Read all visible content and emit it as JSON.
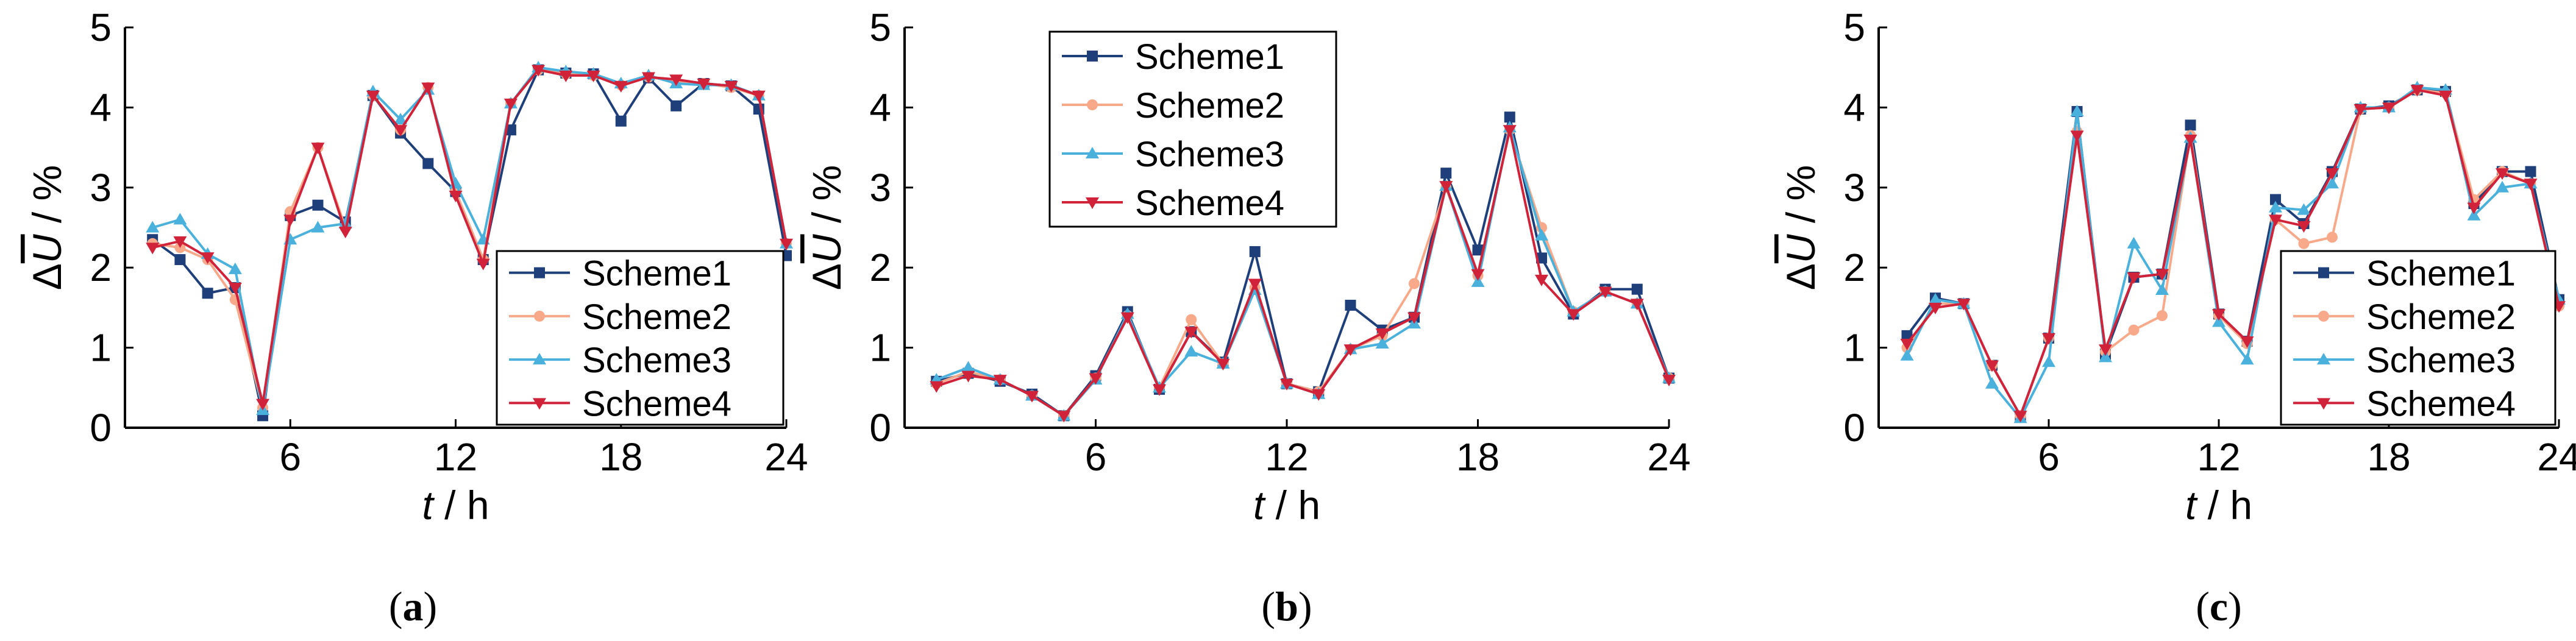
{
  "chart_data": [
    {
      "type": "line",
      "panel_label": "a",
      "xlabel_var": "t",
      "xlabel_unit": " / h",
      "ylabel_var": "U",
      "ylabel_prefix": "Δ",
      "ylabel_unit": " / %",
      "xlim": [
        0,
        24
      ],
      "ylim": [
        0,
        5
      ],
      "xticks": [
        6,
        12,
        18,
        24
      ],
      "yticks": [
        0,
        1,
        2,
        3,
        4,
        5
      ],
      "legend_position": "bottom-right",
      "x": [
        1,
        2,
        3,
        4,
        5,
        6,
        7,
        8,
        9,
        10,
        11,
        12,
        13,
        14,
        15,
        16,
        17,
        18,
        19,
        20,
        21,
        22,
        23,
        24
      ],
      "series": [
        {
          "name": "Scheme1",
          "color": "#1f3f7a",
          "marker": "square",
          "values": [
            2.35,
            2.1,
            1.68,
            1.75,
            0.15,
            2.65,
            2.78,
            2.57,
            4.15,
            3.68,
            3.3,
            2.95,
            2.1,
            3.72,
            4.47,
            4.43,
            4.42,
            3.83,
            4.37,
            4.02,
            4.3,
            4.27,
            3.98,
            2.15
          ]
        },
        {
          "name": "Scheme2",
          "color": "#f7a98a",
          "marker": "circle",
          "values": [
            2.3,
            2.25,
            2.1,
            1.6,
            0.25,
            2.7,
            3.5,
            2.5,
            4.15,
            3.72,
            4.25,
            2.95,
            2.1,
            4.05,
            4.47,
            4.42,
            4.4,
            4.28,
            4.38,
            4.33,
            4.3,
            4.25,
            4.15,
            2.3
          ]
        },
        {
          "name": "Scheme3",
          "color": "#4ab0dc",
          "marker": "triangle-up",
          "values": [
            2.5,
            2.6,
            2.17,
            1.98,
            0.22,
            2.35,
            2.5,
            2.55,
            4.2,
            3.85,
            4.22,
            3.05,
            2.35,
            4.05,
            4.5,
            4.45,
            4.42,
            4.3,
            4.4,
            4.3,
            4.28,
            4.28,
            4.15,
            2.3
          ]
        },
        {
          "name": "Scheme4",
          "color": "#d0233a",
          "marker": "triangle-down",
          "values": [
            2.25,
            2.33,
            2.13,
            1.75,
            0.3,
            2.6,
            3.5,
            2.45,
            4.15,
            3.72,
            4.25,
            2.9,
            2.05,
            4.05,
            4.47,
            4.4,
            4.4,
            4.27,
            4.38,
            4.35,
            4.3,
            4.27,
            4.15,
            2.3
          ]
        }
      ]
    },
    {
      "type": "line",
      "panel_label": "b",
      "xlabel_var": "t",
      "xlabel_unit": " / h",
      "ylabel_var": "U",
      "ylabel_prefix": "Δ",
      "ylabel_unit": " / %",
      "xlim": [
        0,
        24
      ],
      "ylim": [
        0,
        5
      ],
      "xticks": [
        6,
        12,
        18,
        24
      ],
      "yticks": [
        0,
        1,
        2,
        3,
        4,
        5
      ],
      "legend_position": "top-left",
      "x": [
        1,
        2,
        3,
        4,
        5,
        6,
        7,
        8,
        9,
        10,
        11,
        12,
        13,
        14,
        15,
        16,
        17,
        18,
        19,
        20,
        21,
        22,
        23,
        24
      ],
      "series": [
        {
          "name": "Scheme1",
          "color": "#1f3f7a",
          "marker": "square",
          "values": [
            0.58,
            0.68,
            0.58,
            0.42,
            0.15,
            0.65,
            1.45,
            0.48,
            1.2,
            0.82,
            2.2,
            0.55,
            0.45,
            1.53,
            1.22,
            1.38,
            3.18,
            2.22,
            3.88,
            2.12,
            1.42,
            1.73,
            1.73,
            0.62
          ]
        },
        {
          "name": "Scheme2",
          "color": "#f7a98a",
          "marker": "circle",
          "values": [
            0.55,
            0.7,
            0.6,
            0.4,
            0.15,
            0.62,
            1.4,
            0.5,
            1.35,
            0.8,
            1.75,
            0.55,
            0.45,
            0.98,
            1.15,
            1.8,
            3.0,
            1.9,
            3.72,
            2.5,
            1.45,
            1.7,
            1.55,
            0.62
          ]
        },
        {
          "name": "Scheme3",
          "color": "#4ab0dc",
          "marker": "triangle-up",
          "values": [
            0.6,
            0.75,
            0.6,
            0.4,
            0.15,
            0.6,
            1.42,
            0.5,
            0.95,
            0.8,
            1.72,
            0.55,
            0.42,
            0.98,
            1.05,
            1.3,
            3.02,
            1.82,
            3.75,
            2.4,
            1.45,
            1.7,
            1.55,
            0.62
          ]
        },
        {
          "name": "Scheme4",
          "color": "#d0233a",
          "marker": "triangle-down",
          "values": [
            0.52,
            0.65,
            0.6,
            0.4,
            0.15,
            0.62,
            1.38,
            0.48,
            1.2,
            0.8,
            1.8,
            0.55,
            0.42,
            0.98,
            1.18,
            1.38,
            3.02,
            1.92,
            3.72,
            1.85,
            1.42,
            1.7,
            1.55,
            0.6
          ]
        }
      ]
    },
    {
      "type": "line",
      "panel_label": "c",
      "xlabel_var": "t",
      "xlabel_unit": " / h",
      "ylabel_var": "U",
      "ylabel_prefix": "Δ",
      "ylabel_unit": " / %",
      "xlim": [
        0,
        24
      ],
      "ylim": [
        0,
        5
      ],
      "xticks": [
        6,
        12,
        18,
        24
      ],
      "yticks": [
        0,
        1,
        2,
        3,
        4,
        5
      ],
      "legend_position": "bottom-right",
      "x": [
        1,
        2,
        3,
        4,
        5,
        6,
        7,
        8,
        9,
        10,
        11,
        12,
        13,
        14,
        15,
        16,
        17,
        18,
        19,
        20,
        21,
        22,
        23,
        24
      ],
      "series": [
        {
          "name": "Scheme1",
          "color": "#1f3f7a",
          "marker": "square",
          "values": [
            1.15,
            1.62,
            1.55,
            0.78,
            0.15,
            1.12,
            3.95,
            0.92,
            1.88,
            1.92,
            3.78,
            1.42,
            1.08,
            2.85,
            2.55,
            3.2,
            3.98,
            4.02,
            4.22,
            4.2,
            2.8,
            3.2,
            3.2,
            1.6
          ]
        },
        {
          "name": "Scheme2",
          "color": "#f7a98a",
          "marker": "circle",
          "values": [
            1.0,
            1.55,
            1.55,
            0.78,
            0.15,
            1.12,
            3.7,
            0.95,
            1.22,
            1.4,
            3.65,
            1.4,
            1.05,
            2.6,
            2.3,
            2.38,
            3.98,
            4.0,
            4.22,
            4.18,
            2.85,
            3.2,
            3.05,
            1.52
          ]
        },
        {
          "name": "Scheme3",
          "color": "#4ab0dc",
          "marker": "triangle-up",
          "values": [
            0.9,
            1.6,
            1.55,
            0.55,
            0.12,
            0.82,
            3.95,
            0.88,
            2.3,
            1.72,
            3.62,
            1.32,
            0.85,
            2.75,
            2.72,
            3.05,
            4.0,
            4.0,
            4.25,
            4.22,
            2.65,
            3.0,
            3.05,
            1.6
          ]
        },
        {
          "name": "Scheme4",
          "color": "#d0233a",
          "marker": "triangle-down",
          "values": [
            1.05,
            1.5,
            1.55,
            0.78,
            0.15,
            1.12,
            3.65,
            0.98,
            1.88,
            1.92,
            3.6,
            1.42,
            1.08,
            2.6,
            2.52,
            3.18,
            3.98,
            4.0,
            4.22,
            4.15,
            2.75,
            3.18,
            3.05,
            1.52
          ]
        }
      ]
    }
  ]
}
